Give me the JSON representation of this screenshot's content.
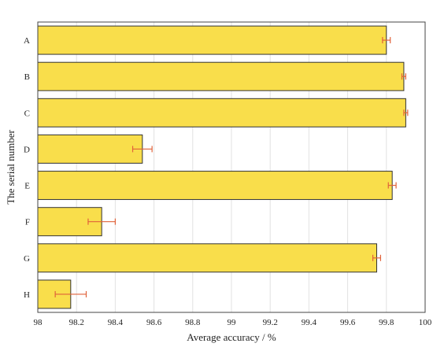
{
  "chart_data": {
    "type": "bar",
    "orientation": "horizontal",
    "categories": [
      "A",
      "B",
      "C",
      "D",
      "E",
      "F",
      "G",
      "H"
    ],
    "values": [
      99.8,
      99.89,
      99.9,
      98.54,
      99.83,
      98.33,
      99.75,
      98.17
    ],
    "errors": [
      0.02,
      0.01,
      0.01,
      0.05,
      0.02,
      0.07,
      0.02,
      0.08
    ],
    "xlabel": "Average accuracy / %",
    "ylabel": "The serial number",
    "xlim": [
      98,
      100
    ],
    "xticks": [
      "98",
      "98.2",
      "98.4",
      "98.6",
      "98.8",
      "99",
      "99.2",
      "99.4",
      "99.6",
      "99.8",
      "100"
    ],
    "grid": "vertical",
    "legend": "none"
  },
  "colors": {
    "bar_fill": "#f9de4b",
    "bar_stroke": "#333333",
    "error_bar": "#e0623a",
    "grid": "#e2e2e2",
    "axis": "#444444"
  }
}
